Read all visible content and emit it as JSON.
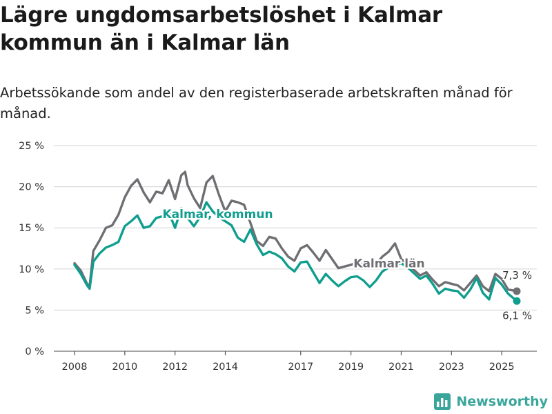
{
  "header": {
    "title": "Lägre ungdomsarbetslöshet i Kalmar kommun än i Kalmar län",
    "subtitle": "Arbetssökande som andel av den registerbaserade arbetskraften månad för månad."
  },
  "brand": {
    "name": "Newsworthy",
    "icon": "bar-chart-logo-icon"
  },
  "colors": {
    "kommun": "#0f9e8e",
    "lan": "#6e6e73",
    "grid": "#d9d9d9",
    "axis": "#333333"
  },
  "chart_data": {
    "type": "line",
    "title": "Lägre ungdomsarbetslöshet i Kalmar kommun än i Kalmar län",
    "xlabel": "",
    "ylabel": "",
    "ylim": [
      0,
      25
    ],
    "xlim": [
      2008,
      2025.75
    ],
    "yticks": [
      0,
      5,
      10,
      15,
      20,
      25
    ],
    "ytick_labels": [
      "0 %",
      "5 %",
      "10 %",
      "15 %",
      "20 %",
      "25 %"
    ],
    "xticks": [
      2008,
      2010,
      2012,
      2014,
      2017,
      2019,
      2021,
      2023,
      2025
    ],
    "xtick_labels": [
      "2008",
      "2010",
      "2012",
      "2014",
      "2017",
      "2019",
      "2021",
      "2023",
      "2025"
    ],
    "grid": "horizontal",
    "legend": "direct labels on lines",
    "series": [
      {
        "name": "Kalmar län",
        "label_at": [
          2019.1,
          10.2
        ],
        "end_label": "7,3 %",
        "points": [
          [
            2008.0,
            10.7
          ],
          [
            2008.25,
            9.8
          ],
          [
            2008.5,
            8.2
          ],
          [
            2008.6,
            7.9
          ],
          [
            2008.75,
            12.2
          ],
          [
            2009.0,
            13.5
          ],
          [
            2009.25,
            15.0
          ],
          [
            2009.5,
            15.3
          ],
          [
            2009.75,
            16.6
          ],
          [
            2010.0,
            18.7
          ],
          [
            2010.25,
            20.1
          ],
          [
            2010.5,
            20.9
          ],
          [
            2010.75,
            19.3
          ],
          [
            2011.0,
            18.1
          ],
          [
            2011.25,
            19.4
          ],
          [
            2011.5,
            19.2
          ],
          [
            2011.75,
            20.8
          ],
          [
            2012.0,
            18.5
          ],
          [
            2012.25,
            21.4
          ],
          [
            2012.4,
            21.8
          ],
          [
            2012.5,
            20.2
          ],
          [
            2012.75,
            18.6
          ],
          [
            2013.0,
            17.4
          ],
          [
            2013.25,
            20.5
          ],
          [
            2013.5,
            21.3
          ],
          [
            2013.75,
            19.0
          ],
          [
            2014.0,
            17.0
          ],
          [
            2014.25,
            18.3
          ],
          [
            2014.5,
            18.1
          ],
          [
            2014.75,
            17.8
          ],
          [
            2015.0,
            15.6
          ],
          [
            2015.25,
            13.4
          ],
          [
            2015.5,
            12.8
          ],
          [
            2015.75,
            13.9
          ],
          [
            2016.0,
            13.7
          ],
          [
            2016.25,
            12.5
          ],
          [
            2016.5,
            11.5
          ],
          [
            2016.75,
            11.0
          ],
          [
            2017.0,
            12.5
          ],
          [
            2017.25,
            12.9
          ],
          [
            2017.5,
            12.0
          ],
          [
            2017.75,
            11.0
          ],
          [
            2018.0,
            12.3
          ],
          [
            2018.25,
            11.2
          ],
          [
            2018.5,
            10.1
          ],
          [
            2018.75,
            10.3
          ],
          [
            2019.0,
            10.5
          ],
          [
            2019.25,
            10.8
          ],
          [
            2019.5,
            10.5
          ],
          [
            2019.75,
            10.2
          ],
          [
            2020.0,
            10.6
          ],
          [
            2020.25,
            11.5
          ],
          [
            2020.5,
            12.1
          ],
          [
            2020.75,
            13.1
          ],
          [
            2021.0,
            11.2
          ],
          [
            2021.25,
            10.6
          ],
          [
            2021.5,
            9.9
          ],
          [
            2021.75,
            9.2
          ],
          [
            2022.0,
            9.6
          ],
          [
            2022.25,
            8.7
          ],
          [
            2022.5,
            7.9
          ],
          [
            2022.75,
            8.4
          ],
          [
            2023.0,
            8.2
          ],
          [
            2023.25,
            8.0
          ],
          [
            2023.5,
            7.4
          ],
          [
            2023.75,
            8.3
          ],
          [
            2024.0,
            9.2
          ],
          [
            2024.25,
            7.9
          ],
          [
            2024.5,
            7.3
          ],
          [
            2024.75,
            9.4
          ],
          [
            2025.0,
            8.8
          ],
          [
            2025.25,
            7.5
          ],
          [
            2025.6,
            7.3
          ]
        ]
      },
      {
        "name": "Kalmar, kommun",
        "label_at": [
          2011.5,
          16.2
        ],
        "end_label": "6,1 %",
        "points": [
          [
            2008.0,
            10.5
          ],
          [
            2008.25,
            9.4
          ],
          [
            2008.5,
            8.0
          ],
          [
            2008.6,
            7.6
          ],
          [
            2008.75,
            10.9
          ],
          [
            2009.0,
            11.9
          ],
          [
            2009.25,
            12.6
          ],
          [
            2009.5,
            12.9
          ],
          [
            2009.75,
            13.3
          ],
          [
            2010.0,
            15.2
          ],
          [
            2010.25,
            15.8
          ],
          [
            2010.5,
            16.5
          ],
          [
            2010.75,
            15.0
          ],
          [
            2011.0,
            15.2
          ],
          [
            2011.25,
            16.2
          ],
          [
            2011.5,
            16.4
          ],
          [
            2011.75,
            16.9
          ],
          [
            2012.0,
            15.0
          ],
          [
            2012.25,
            17.4
          ],
          [
            2012.5,
            16.2
          ],
          [
            2012.75,
            15.2
          ],
          [
            2013.0,
            16.3
          ],
          [
            2013.25,
            18.1
          ],
          [
            2013.5,
            17.0
          ],
          [
            2013.75,
            16.3
          ],
          [
            2014.0,
            15.8
          ],
          [
            2014.25,
            15.3
          ],
          [
            2014.5,
            13.8
          ],
          [
            2014.75,
            13.3
          ],
          [
            2015.0,
            14.8
          ],
          [
            2015.25,
            13.0
          ],
          [
            2015.5,
            11.7
          ],
          [
            2015.75,
            12.1
          ],
          [
            2016.0,
            11.8
          ],
          [
            2016.25,
            11.3
          ],
          [
            2016.5,
            10.3
          ],
          [
            2016.75,
            9.7
          ],
          [
            2017.0,
            10.8
          ],
          [
            2017.25,
            10.9
          ],
          [
            2017.5,
            9.6
          ],
          [
            2017.75,
            8.3
          ],
          [
            2018.0,
            9.4
          ],
          [
            2018.25,
            8.6
          ],
          [
            2018.5,
            7.9
          ],
          [
            2018.75,
            8.5
          ],
          [
            2019.0,
            9.0
          ],
          [
            2019.25,
            9.1
          ],
          [
            2019.5,
            8.6
          ],
          [
            2019.75,
            7.8
          ],
          [
            2020.0,
            8.6
          ],
          [
            2020.25,
            9.7
          ],
          [
            2020.5,
            10.2
          ],
          [
            2020.75,
            10.4
          ],
          [
            2021.0,
            10.7
          ],
          [
            2021.25,
            10.2
          ],
          [
            2021.5,
            9.5
          ],
          [
            2021.75,
            8.8
          ],
          [
            2022.0,
            9.2
          ],
          [
            2022.25,
            8.2
          ],
          [
            2022.5,
            7.0
          ],
          [
            2022.75,
            7.6
          ],
          [
            2023.0,
            7.4
          ],
          [
            2023.25,
            7.3
          ],
          [
            2023.5,
            6.5
          ],
          [
            2023.75,
            7.5
          ],
          [
            2024.0,
            8.9
          ],
          [
            2024.25,
            7.1
          ],
          [
            2024.5,
            6.3
          ],
          [
            2024.75,
            8.9
          ],
          [
            2025.0,
            8.1
          ],
          [
            2025.25,
            7.0
          ],
          [
            2025.6,
            6.1
          ]
        ]
      }
    ]
  }
}
